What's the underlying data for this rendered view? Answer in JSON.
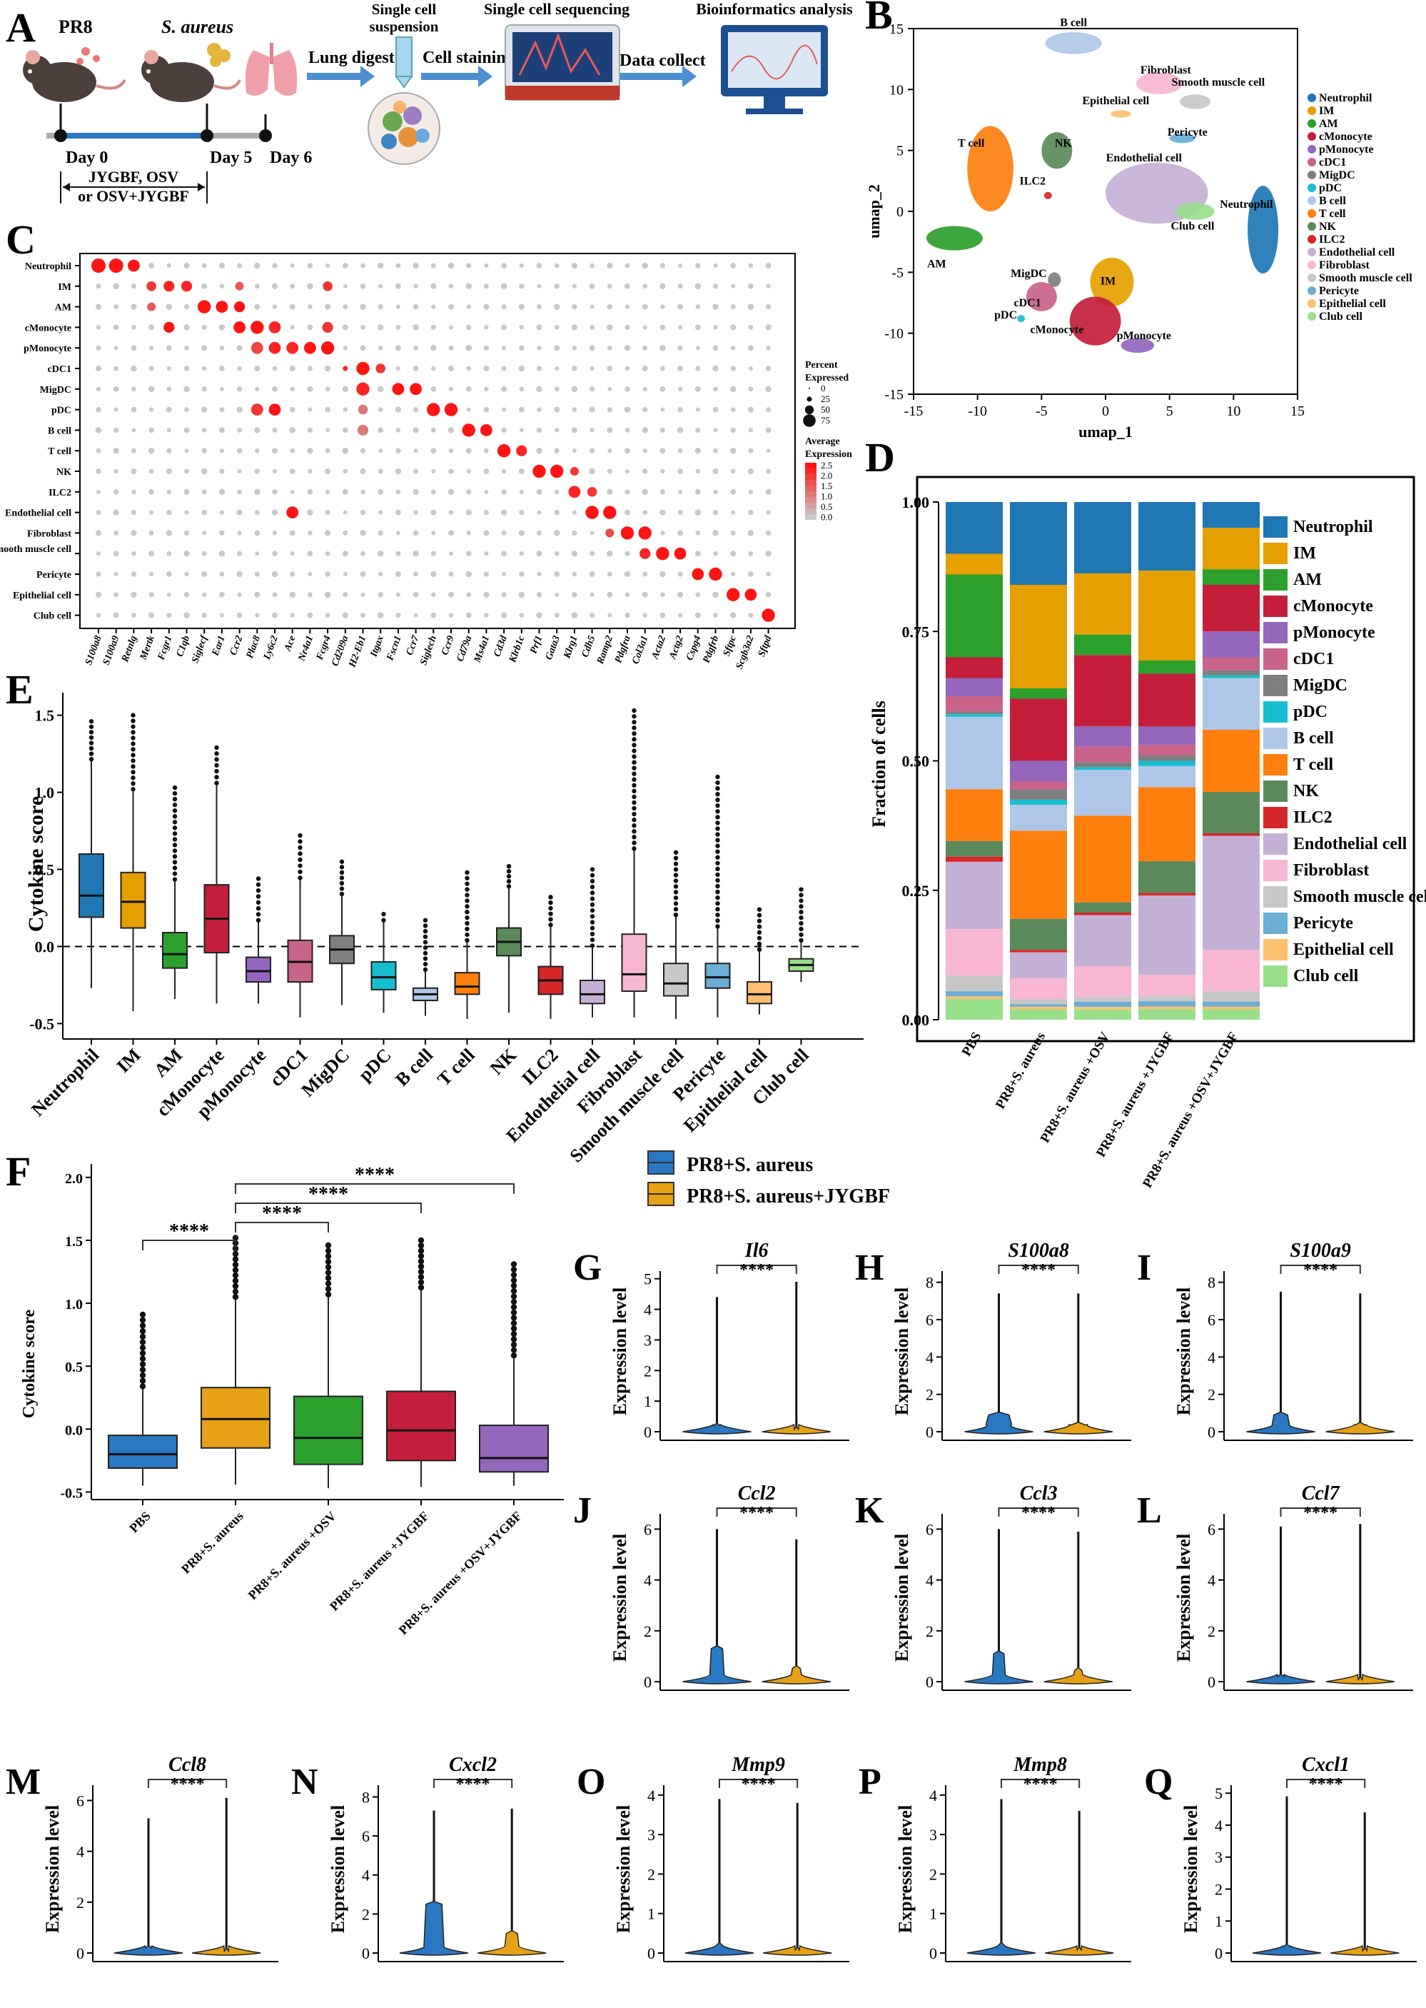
{
  "panel_labels": [
    "A",
    "B",
    "C",
    "D",
    "E",
    "F",
    "G",
    "H",
    "I",
    "J",
    "K",
    "L",
    "M",
    "N",
    "O",
    "P",
    "Q"
  ],
  "panel_a": {
    "mouse1_label": "PR8",
    "mouse2_label": "S. aureus",
    "steps": [
      "Lung digest",
      "Cell staining",
      "Data collect"
    ],
    "single_cell": [
      "Single cell",
      "suspension"
    ],
    "sequencing": "Single cell sequencing",
    "bioinfo": "Bioinformatics analysis",
    "timeline": [
      "Day 0",
      "Day 5",
      "Day 6"
    ],
    "treatment": [
      "JYGBF, OSV",
      "or OSV+JYGBF"
    ]
  },
  "cell_types": [
    "Neutrophil",
    "IM",
    "AM",
    "cMonocyte",
    "pMonocyte",
    "cDC1",
    "MigDC",
    "pDC",
    "B cell",
    "T cell",
    "NK",
    "ILC2",
    "Endothelial cell",
    "Fibroblast",
    "Smooth muscle cell",
    "Pericyte",
    "Epithelial cell",
    "Club cell"
  ],
  "colors": [
    "#1f77b4",
    "#e69f00",
    "#2ca02c",
    "#c41e3a",
    "#9467bd",
    "#c9638a",
    "#7f7f7f",
    "#17becf",
    "#aec7e8",
    "#ff7f0e",
    "#5a8a5a",
    "#d62728",
    "#c5b0d5",
    "#f7b6d2",
    "#c7c7c7",
    "#6baed6",
    "#fdbf6f",
    "#98df8a"
  ],
  "panel_b": {
    "xlabel": "umap_1",
    "ylabel": "umap_2",
    "xticks": [
      "-15",
      "-10",
      "-5",
      "0",
      "5",
      "10",
      "15"
    ],
    "yticks": [
      "15",
      "10",
      "5",
      "0",
      "-5",
      "-10",
      "-15"
    ],
    "cluster_labels": [
      "B cell",
      "Fibroblast",
      "Smooth muscle cell",
      "Epithelial cell",
      "Pericyte",
      "T cell",
      "NK",
      "Endothelial cell",
      "ILC2",
      "Neutrophil",
      "Club cell",
      "AM",
      "MigDC",
      "IM",
      "cDC1",
      "pDC",
      "cMonocyte",
      "pMonocyte"
    ]
  },
  "panel_c": {
    "rows": [
      "Neutrophil",
      "IM",
      "AM",
      "cMonocyte",
      "pMonocyte",
      "cDC1",
      "MigDC",
      "pDC",
      "B cell",
      "T cell",
      "NK",
      "ILC2",
      "Endothelial cell",
      "Fibroblast",
      "Smooth muscle cell",
      "Pericyte",
      "Epithelial cell",
      "Club cell"
    ],
    "genes": [
      "S100a8",
      "S100a9",
      "Retnlg",
      "Mertk",
      "Fcgr1",
      "C1qb",
      "Siglecf",
      "Ear1",
      "Ccr2",
      "Plac8",
      "Ly6c2",
      "Ace",
      "Nr4a1",
      "Fcgr4",
      "Cd209a",
      "H2-Eb1",
      "Itgax",
      "Fscn1",
      "Ccr7",
      "Siglech",
      "Ccr9",
      "Cd79a",
      "Ms4a1",
      "Cd3d",
      "Klrb1c",
      "Prf1",
      "Gata3",
      "Klrg1",
      "Cdh5",
      "Ramp2",
      "Pdgfra",
      "Col3a1",
      "Acta2",
      "Actg2",
      "Cspg4",
      "Pdgfrb",
      "Sftpc",
      "Scgb3a2",
      "Sftpd"
    ],
    "legend_pct_title": [
      "Percent",
      "Expressed"
    ],
    "legend_pct_values": [
      "0",
      "25",
      "50",
      "75"
    ],
    "legend_expr_title": [
      "Average",
      "Expression"
    ],
    "legend_expr_values": [
      "2.5",
      "2.0",
      "1.5",
      "1.0",
      "0.5",
      "0.0"
    ]
  },
  "panel_d": {
    "ylabel": "Fraction of cells",
    "yticks": [
      "0.00",
      "0.25",
      "0.50",
      "0.75",
      "1.00"
    ],
    "groups": [
      "PBS",
      "PR8+S. aureus",
      "PR8+S. aureus +OSV",
      "PR8+S. aureus +JYGBF",
      "PR8+S. aureus +OSV+JYGBF"
    ],
    "legend": [
      "Neutrophil",
      "IM",
      "AM",
      "cMonocyte",
      "pMonocyte",
      "cDC1",
      "MigDC",
      "pDC",
      "B cell",
      "T cell",
      "NK",
      "ILC2",
      "Endothelial cell",
      "Fibroblast",
      "Smooth muscle cell",
      "Pericyte",
      "Epithelial cell",
      "Club cell"
    ]
  },
  "panel_e": {
    "ylabel": "Cytokine score",
    "yticks": [
      "1.5",
      "1.0",
      "0.5",
      "0.0",
      "-0.5"
    ]
  },
  "panel_f": {
    "ylabel": "Cytokine score",
    "yticks": [
      "2.0",
      "1.5",
      "1.0",
      "0.5",
      "0.0",
      "-0.5"
    ],
    "groups": [
      "PBS",
      "PR8+S. aureus",
      "PR8+S. aureus +OSV",
      "PR8+S. aureus +JYGBF",
      "PR8+S. aureus +OSV+JYGBF"
    ],
    "sig": "****"
  },
  "violin_legend": [
    "PR8+S. aureus",
    "PR8+S. aureus+JYGBF"
  ],
  "violin_ylabel": "Expression level",
  "violin_panels": [
    {
      "label": "G",
      "gene": "Il6",
      "yticks": [
        "0",
        "1",
        "2",
        "3",
        "4",
        "5"
      ]
    },
    {
      "label": "H",
      "gene": "S100a8",
      "yticks": [
        "0",
        "2",
        "4",
        "6",
        "8"
      ]
    },
    {
      "label": "I",
      "gene": "S100a9",
      "yticks": [
        "0",
        "2",
        "4",
        "6",
        "8"
      ]
    },
    {
      "label": "J",
      "gene": "Ccl2",
      "yticks": [
        "0",
        "2",
        "4",
        "6"
      ]
    },
    {
      "label": "K",
      "gene": "Ccl3",
      "yticks": [
        "0",
        "2",
        "4",
        "6"
      ]
    },
    {
      "label": "L",
      "gene": "Ccl7",
      "yticks": [
        "0",
        "2",
        "4",
        "6"
      ]
    },
    {
      "label": "M",
      "gene": "Ccl8",
      "yticks": [
        "0",
        "2",
        "4",
        "6"
      ]
    },
    {
      "label": "N",
      "gene": "Cxcl2",
      "yticks": [
        "0",
        "2",
        "4",
        "6",
        "8"
      ]
    },
    {
      "label": "O",
      "gene": "Mmp9",
      "yticks": [
        "0",
        "1",
        "2",
        "3",
        "4"
      ]
    },
    {
      "label": "P",
      "gene": "Mmp8",
      "yticks": [
        "0",
        "1",
        "2",
        "3",
        "4"
      ]
    },
    {
      "label": "Q",
      "gene": "Cxcl1",
      "yticks": [
        "0",
        "1",
        "2",
        "3",
        "4",
        "5"
      ]
    }
  ],
  "chart_data": [
    {
      "type": "bar",
      "title": "D",
      "ylabel": "Fraction of cells",
      "ylim": [
        0,
        1
      ],
      "categories": [
        "PBS",
        "PR8+S. aureus",
        "PR8+S. aureus +OSV",
        "PR8+S. aureus +JYGBF",
        "PR8+S. aureus +OSV+JYGBF"
      ],
      "stacked": true,
      "series": [
        {
          "name": "Neutrophil",
          "values": [
            0.1,
            0.16,
            0.14,
            0.13,
            0.05
          ]
        },
        {
          "name": "IM",
          "values": [
            0.04,
            0.2,
            0.12,
            0.17,
            0.08
          ]
        },
        {
          "name": "AM",
          "values": [
            0.16,
            0.02,
            0.04,
            0.025,
            0.03
          ]
        },
        {
          "name": "cMonocyte",
          "values": [
            0.04,
            0.12,
            0.14,
            0.1,
            0.09
          ]
        },
        {
          "name": "pMonocyte",
          "values": [
            0.035,
            0.04,
            0.04,
            0.035,
            0.05
          ]
        },
        {
          "name": "cDC1",
          "values": [
            0.03,
            0.015,
            0.03,
            0.02,
            0.025
          ]
        },
        {
          "name": "MigDC",
          "values": [
            0.005,
            0.02,
            0.01,
            0.01,
            0.01
          ]
        },
        {
          "name": "pDC",
          "values": [
            0.005,
            0.01,
            0.005,
            0.01,
            0.005
          ]
        },
        {
          "name": "B cell",
          "values": [
            0.14,
            0.05,
            0.09,
            0.04,
            0.1
          ]
        },
        {
          "name": "T cell",
          "values": [
            0.1,
            0.17,
            0.17,
            0.14,
            0.12
          ]
        },
        {
          "name": "NK",
          "values": [
            0.03,
            0.06,
            0.02,
            0.06,
            0.08
          ]
        },
        {
          "name": "ILC2",
          "values": [
            0.01,
            0.005,
            0.005,
            0.005,
            0.005
          ]
        },
        {
          "name": "Endothelial cell",
          "values": [
            0.13,
            0.05,
            0.1,
            0.15,
            0.22
          ]
        },
        {
          "name": "Fibroblast",
          "values": [
            0.09,
            0.04,
            0.06,
            0.04,
            0.08
          ]
        },
        {
          "name": "Smooth muscle cell",
          "values": [
            0.03,
            0.01,
            0.01,
            0.01,
            0.02
          ]
        },
        {
          "name": "Pericyte",
          "values": [
            0.01,
            0.005,
            0.01,
            0.01,
            0.01
          ]
        },
        {
          "name": "Epithelial cell",
          "values": [
            0.005,
            0.005,
            0.005,
            0.005,
            0.005
          ]
        },
        {
          "name": "Club cell",
          "values": [
            0.04,
            0.02,
            0.02,
            0.02,
            0.02
          ]
        }
      ]
    },
    {
      "type": "box",
      "title": "E",
      "ylabel": "Cytokine score",
      "ylim": [
        -0.5,
        1.5
      ],
      "categories": [
        "Neutrophil",
        "IM",
        "AM",
        "cMonocyte",
        "pMonocyte",
        "cDC1",
        "MigDC",
        "pDC",
        "B cell",
        "T cell",
        "NK",
        "ILC2",
        "Endothelial cell",
        "Fibroblast",
        "Smooth muscle cell",
        "Pericyte",
        "Epithelial cell",
        "Club cell"
      ],
      "median": [
        0.33,
        0.29,
        -0.05,
        0.18,
        -0.16,
        -0.1,
        -0.02,
        -0.2,
        -0.31,
        -0.26,
        0.03,
        -0.22,
        -0.31,
        -0.18,
        -0.24,
        -0.2,
        -0.31,
        -0.12
      ],
      "q1": [
        0.19,
        0.12,
        -0.14,
        -0.04,
        -0.23,
        -0.23,
        -0.11,
        -0.28,
        -0.35,
        -0.31,
        -0.06,
        -0.31,
        -0.37,
        -0.29,
        -0.32,
        -0.27,
        -0.37,
        -0.16
      ],
      "q3": [
        0.6,
        0.48,
        0.09,
        0.4,
        -0.07,
        0.04,
        0.07,
        -0.1,
        -0.27,
        -0.17,
        0.12,
        -0.13,
        -0.22,
        0.08,
        -0.11,
        -0.11,
        -0.23,
        -0.08
      ],
      "whisker_low": [
        -0.27,
        -0.42,
        -0.34,
        -0.37,
        -0.37,
        -0.46,
        -0.38,
        -0.43,
        -0.45,
        -0.47,
        -0.43,
        -0.47,
        -0.46,
        -0.46,
        -0.47,
        -0.46,
        -0.44,
        -0.23
      ],
      "whisker_high": [
        1.46,
        1.5,
        1.03,
        1.29,
        0.44,
        0.72,
        0.55,
        0.21,
        0.17,
        0.48,
        0.52,
        0.32,
        0.5,
        1.53,
        0.61,
        1.1,
        0.24,
        0.37
      ]
    },
    {
      "type": "box",
      "title": "F",
      "ylabel": "Cytokine score",
      "ylim": [
        -0.5,
        2.0
      ],
      "categories": [
        "PBS",
        "PR8+S. aureus",
        "PR8+S. aureus +OSV",
        "PR8+S. aureus +JYGBF",
        "PR8+S. aureus +OSV+JYGBF"
      ],
      "median": [
        -0.2,
        0.08,
        -0.07,
        -0.01,
        -0.23
      ],
      "q1": [
        -0.31,
        -0.15,
        -0.28,
        -0.25,
        -0.34
      ],
      "q3": [
        -0.05,
        0.33,
        0.26,
        0.3,
        0.03
      ],
      "whisker_low": [
        -0.45,
        -0.44,
        -0.47,
        -0.46,
        -0.45
      ],
      "whisker_high": [
        0.91,
        1.52,
        1.46,
        1.5,
        1.31
      ],
      "comparisons": [
        [
          "PBS",
          "PR8+S. aureus",
          "****"
        ],
        [
          "PR8+S. aureus",
          "PR8+S. aureus +OSV",
          "****"
        ],
        [
          "PR8+S. aureus",
          "PR8+S. aureus +JYGBF",
          "****"
        ],
        [
          "PR8+S. aureus",
          "PR8+S. aureus +OSV+JYGBF",
          "****"
        ]
      ]
    },
    {
      "type": "violin",
      "title": "G-Q",
      "ylabel": "Expression level",
      "series_names": [
        "PR8+S. aureus",
        "PR8+S. aureus+JYGBF"
      ],
      "genes": [
        "Il6",
        "S100a8",
        "S100a9",
        "Ccl2",
        "Ccl3",
        "Ccl7",
        "Ccl8",
        "Cxcl2",
        "Mmp9",
        "Mmp8",
        "Cxcl1"
      ],
      "max_expression": [
        [
          4.4,
          4.9
        ],
        [
          7.4,
          7.4
        ],
        [
          7.5,
          7.4
        ],
        [
          6.0,
          5.6
        ],
        [
          6.0,
          5.9
        ],
        [
          6.1,
          6.2
        ],
        [
          5.3,
          6.1
        ],
        [
          7.3,
          7.4
        ],
        [
          3.9,
          3.8
        ],
        [
          3.9,
          3.6
        ],
        [
          4.9,
          4.4
        ]
      ],
      "significance": "****"
    }
  ]
}
